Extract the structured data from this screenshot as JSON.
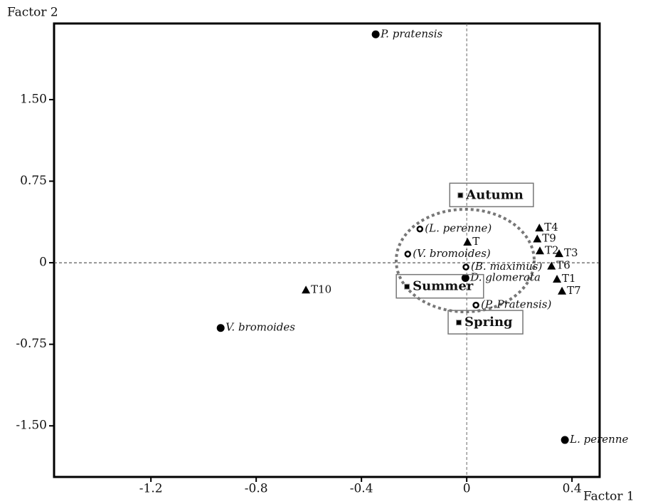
{
  "chart_data": {
    "type": "scatter",
    "x_label": "Factor 1",
    "y_label": "Factor 2",
    "xlim": [
      -1.568,
      0.505
    ],
    "ylim": [
      -1.97,
      2.2
    ],
    "xticks": [
      -1.2,
      -0.8,
      -0.4,
      0,
      0.4
    ],
    "yticks": [
      {
        "value": 1.5,
        "label": "1.50"
      },
      0.75,
      0,
      -0.75,
      {
        "value": -1.5,
        "label": "-1.50"
      }
    ],
    "zero_lines": true,
    "series": [
      {
        "marker": "circle",
        "label_style": "italic",
        "color": "#000000",
        "labels": [
          "P. pratensis",
          "V. bromoides",
          "L. perenne",
          "D. glomerata"
        ],
        "x": [
          -0.346,
          -0.935,
          0.373,
          -0.005
        ],
        "y": [
          2.1,
          -0.6,
          -1.63,
          -0.14
        ]
      },
      {
        "marker": "open-circle",
        "label_style": "italic",
        "color": "#000000",
        "labels": [
          "(L. perenne)",
          "(V. bromoides)",
          "(B. maximus)",
          "(P. Pratensis)"
        ],
        "x": [
          -0.178,
          -0.224,
          -0.003,
          0.035
        ],
        "y": [
          0.31,
          0.08,
          -0.04,
          -0.39
        ]
      },
      {
        "marker": "square",
        "label_style": "bold",
        "boxed": true,
        "color": "#000000",
        "labels": [
          "Autumn",
          "Summer",
          "Spring"
        ],
        "x": [
          -0.024,
          -0.227,
          -0.03
        ],
        "y": [
          0.62,
          -0.22,
          -0.55
        ]
      },
      {
        "marker": "triangle",
        "label_style": "normal",
        "color": "#000000",
        "labels": [
          "T",
          "T4",
          "T9",
          "T2",
          "T3",
          "T6",
          "T1",
          "T7",
          "T10"
        ],
        "x": [
          0.003,
          0.276,
          0.268,
          0.278,
          0.351,
          0.322,
          0.343,
          0.362,
          -0.611
        ],
        "y": [
          0.19,
          0.32,
          0.22,
          0.11,
          0.085,
          -0.03,
          -0.15,
          -0.26,
          -0.25
        ]
      }
    ]
  }
}
